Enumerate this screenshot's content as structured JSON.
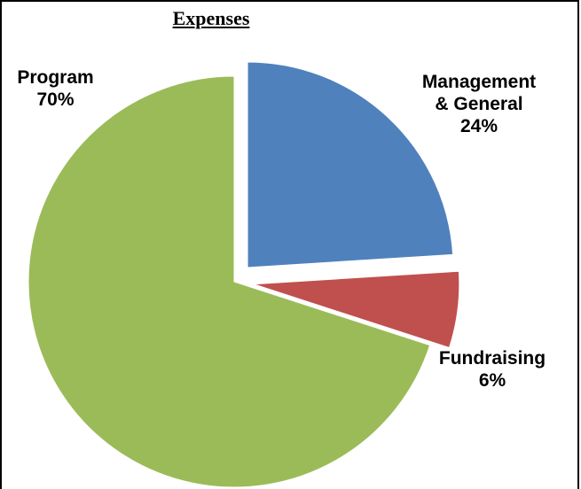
{
  "chart_data": {
    "type": "pie",
    "title": "Expenses",
    "categories": [
      "Management & General",
      "Fundraising",
      "Program"
    ],
    "values": [
      24,
      6,
      70
    ],
    "value_labels": [
      "24%",
      "6%",
      "70%"
    ],
    "colors": [
      "#4f81bd",
      "#c0504d",
      "#9bbb59"
    ],
    "exploded": [
      true,
      true,
      false
    ]
  }
}
